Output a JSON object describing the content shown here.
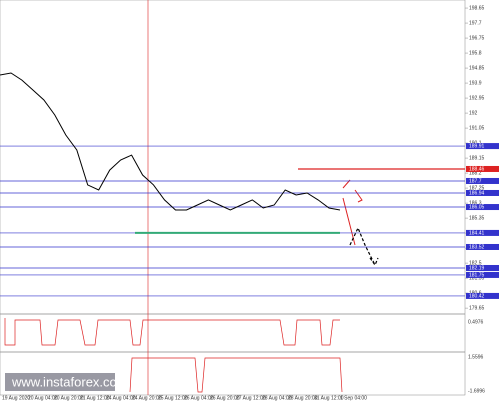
{
  "chart_data": {
    "type": "line",
    "color": "#000000",
    "values": [
      194.41,
      194.54,
      194.09,
      193.46,
      192.83,
      191.88,
      190.61,
      189.66,
      187.45,
      187.13,
      188.39,
      189.03,
      189.34,
      188.08,
      187.45,
      186.5,
      185.86,
      185.86,
      186.18,
      186.5,
      186.18,
      185.86,
      186.18,
      186.5,
      185.99,
      186.18,
      187.13,
      186.81,
      186.94,
      186.5,
      185.99,
      185.86
    ],
    "ylim": [
      179.34,
      199.16
    ],
    "yticks": [
      198.65,
      197.7,
      196.75,
      195.8,
      194.85,
      193.9,
      192.95,
      192.0,
      191.05,
      190.1,
      189.15,
      188.2,
      187.25,
      186.3,
      185.35,
      184.4,
      183.45,
      182.5,
      181.55,
      180.6,
      179.65
    ],
    "levels": [
      {
        "value": 189.91,
        "color": "#3333cc"
      },
      {
        "value": 188.46,
        "color": "#dd2222"
      },
      {
        "value": 187.7,
        "color": "#3333cc"
      },
      {
        "value": 186.94,
        "color": "#3333cc"
      },
      {
        "value": 186.05,
        "color": "#3333cc"
      },
      {
        "value": 184.41,
        "color": "#3333cc"
      },
      {
        "value": 183.52,
        "color": "#3333cc"
      },
      {
        "value": 182.19,
        "color": "#3333cc"
      },
      {
        "value": 181.75,
        "color": "#3333cc"
      },
      {
        "value": 180.42,
        "color": "#3333cc"
      }
    ],
    "support": {
      "value": 184.41,
      "color": "#33aa77"
    },
    "x_labels": [
      "19 Aug 2020",
      "20 Aug 04:00",
      "20 Aug 20:00",
      "21 Aug 12:00",
      "24 Aug 04:00",
      "24 Aug 20:00",
      "25 Aug 12:00",
      "26 Aug 04:00",
      "26 Aug 20:00",
      "27 Aug 12:00",
      "28 Aug 04:00",
      "28 Aug 20:00",
      "31 Aug 12:00",
      "1 Sep 04:00"
    ],
    "indicator_labels": [
      "0.4976",
      "1.5596",
      "-1.6996"
    ],
    "watermark": "www.instaforex.com"
  }
}
